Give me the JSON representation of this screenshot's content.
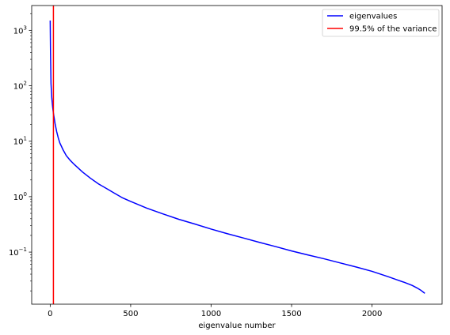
{
  "chart_data": {
    "type": "line",
    "title": "",
    "xlabel": "eigenvalue number",
    "ylabel": "",
    "yscale": "log",
    "xlim": [
      -115,
      2435
    ],
    "ylim": [
      0.0115,
      2800
    ],
    "grid": false,
    "legend_position": "top-right",
    "x_ticks": [
      0,
      500,
      1000,
      1500,
      2000
    ],
    "y_ticks": [
      {
        "value": 0.1,
        "mantissa": "10",
        "exponent": "−1"
      },
      {
        "value": 1,
        "mantissa": "10",
        "exponent": "0"
      },
      {
        "value": 10,
        "mantissa": "10",
        "exponent": "1"
      },
      {
        "value": 100,
        "mantissa": "10",
        "exponent": "2"
      },
      {
        "value": 1000,
        "mantissa": "10",
        "exponent": "3"
      }
    ],
    "series": [
      {
        "name": "eigenvalues",
        "kind": "curve",
        "color": "#0000ff",
        "x": [
          0,
          2,
          5,
          10,
          15,
          20,
          25,
          30,
          40,
          50,
          60,
          80,
          100,
          125,
          150,
          200,
          250,
          300,
          350,
          400,
          450,
          500,
          600,
          700,
          800,
          900,
          1000,
          1100,
          1200,
          1300,
          1400,
          1500,
          1600,
          1700,
          1800,
          1900,
          2000,
          2100,
          2150,
          2200,
          2250,
          2280,
          2300,
          2310,
          2320,
          2328
        ],
        "y": [
          1500,
          400,
          110,
          60,
          42,
          32,
          26,
          21,
          15,
          11.5,
          9.3,
          7.0,
          5.5,
          4.5,
          3.8,
          2.8,
          2.15,
          1.7,
          1.4,
          1.15,
          0.95,
          0.82,
          0.62,
          0.49,
          0.39,
          0.32,
          0.26,
          0.215,
          0.18,
          0.15,
          0.126,
          0.105,
          0.089,
          0.076,
          0.064,
          0.054,
          0.045,
          0.036,
          0.032,
          0.0285,
          0.025,
          0.0225,
          0.0208,
          0.0198,
          0.0188,
          0.018
        ]
      },
      {
        "name": "99.5% of the variance",
        "kind": "vline",
        "color": "#ff0000",
        "x": 20
      }
    ]
  }
}
